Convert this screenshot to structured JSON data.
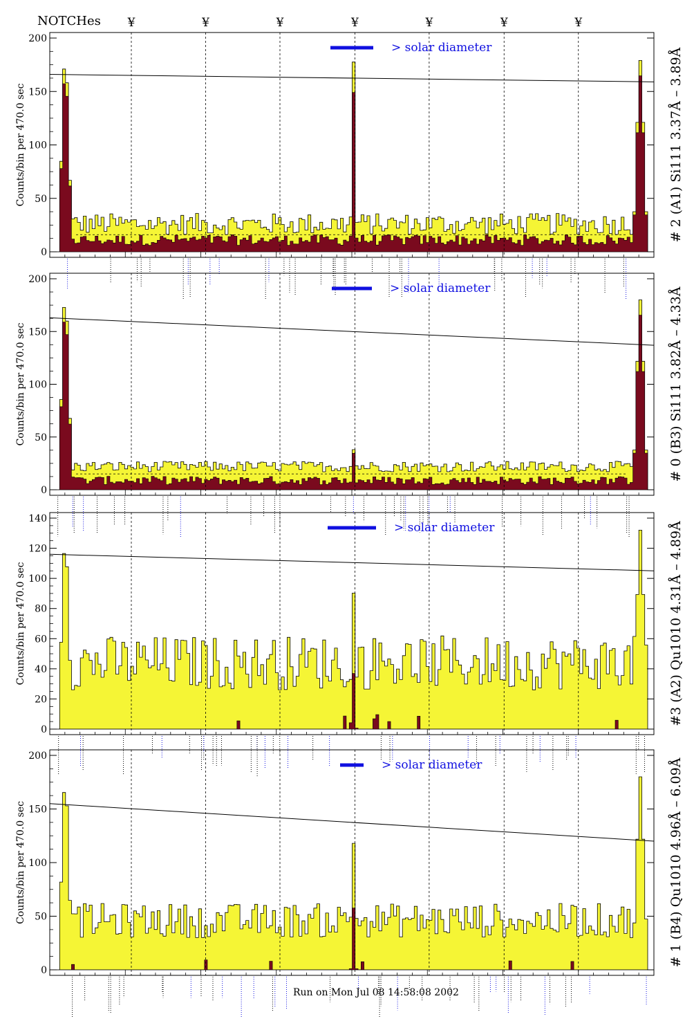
{
  "header": {
    "notches_label": "NOTCHes",
    "notch_symbol": "¥"
  },
  "footer": {
    "run_text": "Run on Mon Jul 08 14:58:08 2002"
  },
  "colors": {
    "fill_yellow": "#f5f535",
    "fill_maroon": "#7a0a1e",
    "blue": "#1010e0",
    "line": "#000000"
  },
  "notch_positions": [
    0.135,
    0.258,
    0.381,
    0.505,
    0.628,
    0.752,
    0.875
  ],
  "chart_data": [
    {
      "type": "bar",
      "title": "# 2 (A1) Si111  3.37Å – 3.89Å",
      "ylabel": "Counts/bin per   470.0 sec",
      "ylim": [
        0,
        200
      ],
      "yticks": [
        0,
        50,
        100,
        150,
        200
      ],
      "legend_text": "> solar diameter",
      "trend_line": [
        166,
        159
      ],
      "dashed_level": 16,
      "peaks": {
        "left": 182,
        "center": 176,
        "right": 179
      },
      "baseline": {
        "yellow": 26,
        "maroon": 10,
        "noise": 10
      }
    },
    {
      "type": "bar",
      "title": "# 0 (B3) Si111  3.82Å – 4.33Å",
      "ylabel": "Counts/bin per   470.0 sec",
      "ylim": [
        0,
        200
      ],
      "yticks": [
        0,
        50,
        100,
        150,
        200
      ],
      "legend_text": "> solar diameter",
      "trend_line": [
        163,
        137
      ],
      "dashed_level": 15,
      "peaks": {
        "left": 184,
        "center": 38,
        "right": 180
      },
      "baseline": {
        "yellow": 22,
        "maroon": 8,
        "noise": 5
      }
    },
    {
      "type": "bar",
      "title": "#3 (A2) Qu1010  4.31Å – 4.89Å",
      "ylabel": "Counts/bin per   470.0 sec",
      "ylim": [
        0,
        140
      ],
      "yticks": [
        0,
        20,
        40,
        60,
        80,
        100,
        120,
        140
      ],
      "legend_text": "> solar diameter",
      "trend_line": [
        116,
        105
      ],
      "dashed_level": null,
      "peaks": {
        "left": 124,
        "center": 82,
        "right": 132
      },
      "baseline": {
        "yellow": 44,
        "maroon": 0,
        "noise": 18
      }
    },
    {
      "type": "bar",
      "title": "# 1 (B4) Qu1010 4.96Å – 6.09Å",
      "ylabel": "Counts/bin per   470.0 sec",
      "ylim": [
        0,
        200
      ],
      "yticks": [
        0,
        50,
        100,
        150,
        200
      ],
      "legend_text": "> solar diameter",
      "trend_line": [
        155,
        120
      ],
      "dashed_level": null,
      "peaks": {
        "left": 176,
        "center": 128,
        "right": 180
      },
      "baseline": {
        "yellow": 46,
        "maroon": 0,
        "noise": 16
      }
    }
  ]
}
